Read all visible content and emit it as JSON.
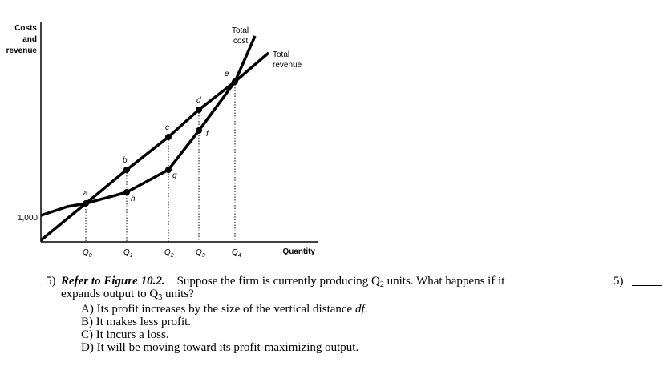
{
  "figure": {
    "y_axis_label": [
      "Costs",
      "and",
      "revenue"
    ],
    "y_tick_label": "1,000",
    "x_axis_label": "Quantity",
    "x_tick_labels": [
      {
        "main": "Q",
        "sub": "0"
      },
      {
        "main": "Q",
        "sub": "1"
      },
      {
        "main": "Q",
        "sub": "2"
      },
      {
        "main": "Q",
        "sub": "3"
      },
      {
        "main": "Q",
        "sub": "4"
      }
    ],
    "total_cost_label": [
      "Total",
      "cost"
    ],
    "total_revenue_label": [
      "Total",
      "revenue"
    ],
    "point_labels": {
      "a": "a",
      "b": "b",
      "c": "c",
      "d": "d",
      "e": "e",
      "f": "f",
      "g": "g",
      "h": "h"
    }
  },
  "question": {
    "number": "5)",
    "ref": "Refer to Figure 10.2.",
    "line1_rest_a": "Suppose the firm is currently producing Q",
    "line1_sub": "2",
    "line1_rest_b": " units. What happens if it",
    "line2_a": "expands output to Q",
    "line2_sub": "3",
    "line2_b": " units?",
    "options": [
      {
        "letter": "A)",
        "text": "Its profit increases by the size of the vertical distance ",
        "italic": "df",
        "end": "."
      },
      {
        "letter": "B)",
        "text": "It makes less profit.",
        "italic": "",
        "end": ""
      },
      {
        "letter": "C)",
        "text": "It incurs a loss.",
        "italic": "",
        "end": ""
      },
      {
        "letter": "D)",
        "text": "It will be moving toward its profit-maximizing output.",
        "italic": "",
        "end": ""
      }
    ],
    "answer_number": "5)"
  }
}
